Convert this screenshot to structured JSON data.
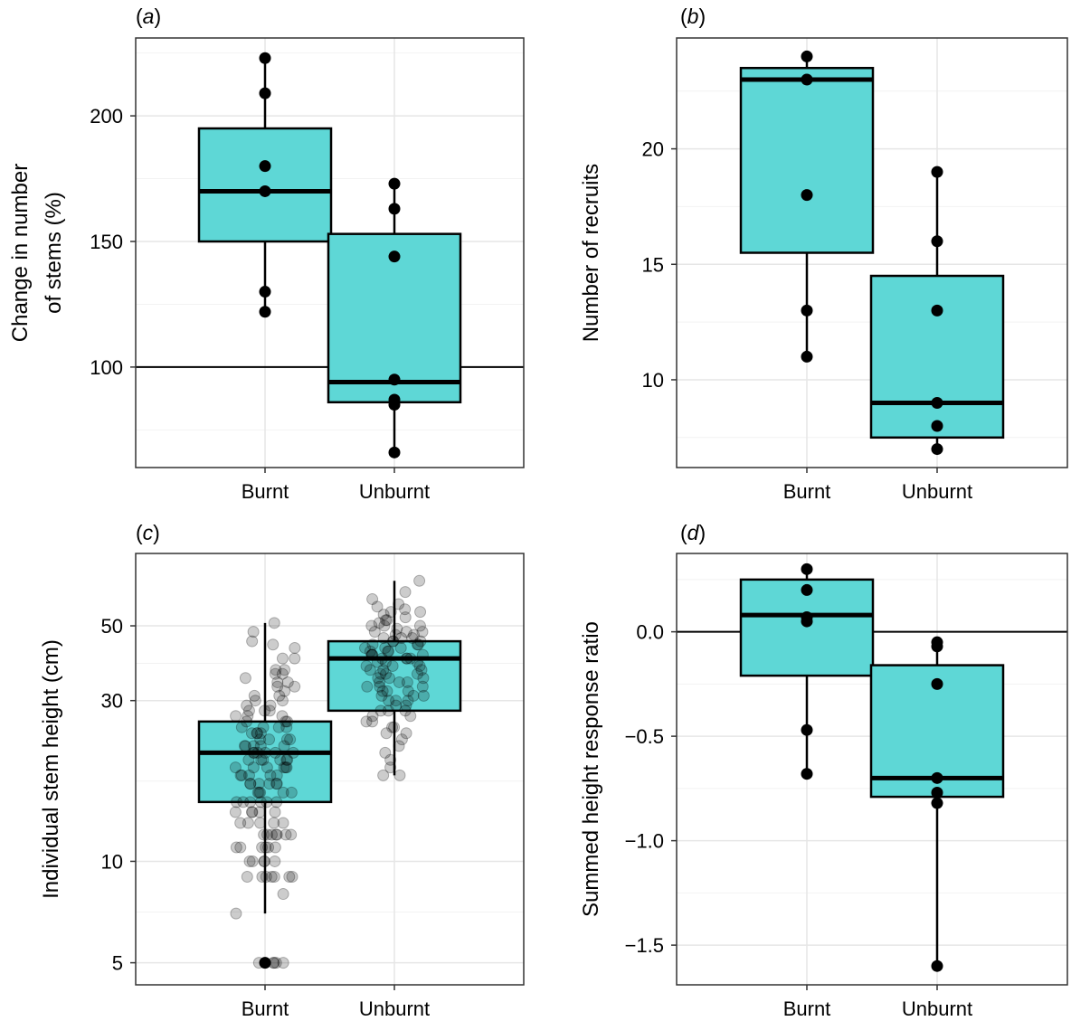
{
  "colors": {
    "box_fill": "#5ED7D6",
    "box_stroke": "#000000",
    "point": "#000000",
    "grid_major": "#E6E6E6",
    "grid_minor": "#F2F2F2",
    "panel_border": "#333333"
  },
  "chart_data": [
    {
      "id": "a",
      "panel_label": "a",
      "type": "box",
      "categories": [
        "Burnt",
        "Unburnt"
      ],
      "ylabel_lines": [
        "Change in number",
        "of stems (%)"
      ],
      "y_scale": "linear",
      "ylim": [
        60,
        231
      ],
      "yticks": [
        100,
        150,
        200
      ],
      "ytick_labels": [
        "100",
        "150",
        "200"
      ],
      "yminor": [
        75,
        125,
        175,
        225
      ],
      "reference_line": 100,
      "point_style": "solid",
      "grid": true,
      "boxes": [
        {
          "category": "Burnt",
          "whisker_low": 122,
          "q1": 150,
          "median": 170,
          "q3": 195,
          "whisker_high": 223
        },
        {
          "category": "Unburnt",
          "whisker_low": 66,
          "q1": 86,
          "median": 94,
          "q3": 153,
          "whisker_high": 173
        }
      ],
      "points": [
        {
          "category": "Burnt",
          "values": [
            223,
            209,
            180,
            170,
            130,
            122
          ]
        },
        {
          "category": "Unburnt",
          "values": [
            173,
            163,
            144,
            95,
            87,
            85,
            66
          ]
        }
      ]
    },
    {
      "id": "b",
      "panel_label": "b",
      "type": "box",
      "categories": [
        "Burnt",
        "Unburnt"
      ],
      "ylabel_lines": [
        "Number of recruits"
      ],
      "y_scale": "linear",
      "ylim": [
        6.2,
        24.8
      ],
      "yticks": [
        10,
        15,
        20
      ],
      "ytick_labels": [
        "10",
        "15",
        "20"
      ],
      "yminor": [
        7.5,
        12.5,
        17.5,
        22.5
      ],
      "reference_line": null,
      "point_style": "solid",
      "grid": true,
      "boxes": [
        {
          "category": "Burnt",
          "whisker_low": 11,
          "q1": 15.5,
          "median": 23,
          "q3": 23.5,
          "whisker_high": 24
        },
        {
          "category": "Unburnt",
          "whisker_low": 7,
          "q1": 7.5,
          "median": 9,
          "q3": 14.5,
          "whisker_high": 19
        }
      ],
      "points": [
        {
          "category": "Burnt",
          "values": [
            24,
            23,
            18,
            13,
            11
          ]
        },
        {
          "category": "Unburnt",
          "values": [
            19,
            16,
            13,
            9,
            8,
            7
          ]
        }
      ]
    },
    {
      "id": "c",
      "panel_label": "c",
      "type": "box",
      "categories": [
        "Burnt",
        "Unburnt"
      ],
      "ylabel_lines": [
        "Individual stem height (cm)"
      ],
      "y_scale": "log",
      "ylim": [
        4.3,
        82
      ],
      "yticks": [
        5,
        10,
        30,
        50
      ],
      "ytick_labels": [
        "5",
        "10",
        "30",
        "50"
      ],
      "yminor": [
        7.07,
        17.3,
        38.7
      ],
      "reference_line": null,
      "point_style": "jitter-translucent",
      "grid": true,
      "boxes": [
        {
          "category": "Burnt",
          "whisker_low": 7,
          "q1": 15,
          "median": 21,
          "q3": 26,
          "whisker_high": 51
        },
        {
          "category": "Unburnt",
          "whisker_low": 18,
          "q1": 28,
          "median": 40,
          "q3": 45,
          "whisker_high": 68
        }
      ],
      "points": [
        {
          "category": "Burnt",
          "values": [
            51,
            48,
            44,
            40,
            37,
            36,
            35,
            34,
            33,
            32,
            31,
            30,
            30,
            29,
            28,
            28,
            27,
            27,
            26,
            26,
            25,
            25,
            25,
            24,
            24,
            24,
            23,
            23,
            23,
            22,
            22,
            22,
            22,
            21,
            21,
            21,
            21,
            20,
            20,
            20,
            20,
            20,
            19,
            19,
            19,
            19,
            18,
            18,
            18,
            18,
            17,
            17,
            17,
            17,
            16,
            16,
            16,
            16,
            15,
            15,
            15,
            15,
            14,
            14,
            14,
            14,
            13,
            13,
            13,
            12,
            12,
            12,
            12,
            12,
            11,
            11,
            11,
            11,
            10,
            10,
            10,
            9,
            9,
            9,
            9,
            9,
            7,
            5,
            5,
            5,
            5,
            5,
            45,
            36,
            33,
            28,
            26,
            23,
            21,
            19,
            17,
            15,
            13,
            12,
            11,
            10,
            9,
            8,
            22,
            20,
            18,
            16,
            14,
            24,
            27,
            31,
            34,
            37,
            40,
            43,
            29,
            25,
            21,
            19,
            17,
            15,
            13,
            12,
            11,
            10,
            9
          ]
        },
        {
          "category": "Unburnt",
          "values": [
            68,
            63,
            60,
            58,
            57,
            56,
            55,
            54,
            53,
            52,
            52,
            51,
            50,
            50,
            49,
            48,
            48,
            47,
            47,
            46,
            46,
            45,
            45,
            44,
            44,
            43,
            43,
            43,
            42,
            42,
            41,
            41,
            41,
            40,
            40,
            40,
            39,
            39,
            38,
            38,
            37,
            37,
            36,
            36,
            35,
            35,
            34,
            34,
            33,
            33,
            32,
            32,
            31,
            31,
            30,
            30,
            29,
            29,
            28,
            28,
            27,
            27,
            26,
            26,
            25,
            25,
            24,
            24,
            23,
            22,
            21,
            20,
            19,
            18,
            18,
            55,
            50,
            46,
            42,
            39,
            36,
            33,
            30,
            28,
            45,
            41,
            38,
            35,
            32,
            48,
            44,
            40,
            37,
            34,
            31
          ]
        }
      ]
    },
    {
      "id": "d",
      "panel_label": "d",
      "type": "box",
      "categories": [
        "Burnt",
        "Unburnt"
      ],
      "ylabel_lines": [
        "Summed height response ratio"
      ],
      "y_scale": "linear",
      "ylim": [
        -1.69,
        0.375
      ],
      "yticks": [
        -1.5,
        -1.0,
        -0.5,
        0.0
      ],
      "ytick_labels": [
        "-1.5",
        "-1.0",
        "-0.5",
        "0.0"
      ],
      "yminor": [
        -1.25,
        -0.75,
        -0.25,
        0.25
      ],
      "reference_line": 0,
      "point_style": "solid",
      "grid": true,
      "boxes": [
        {
          "category": "Burnt",
          "whisker_low": -0.68,
          "q1": -0.21,
          "median": 0.08,
          "q3": 0.25,
          "whisker_high": 0.3
        },
        {
          "category": "Unburnt",
          "whisker_low": -1.6,
          "q1": -0.79,
          "median": -0.7,
          "q3": -0.16,
          "whisker_high": -0.05
        }
      ],
      "points": [
        {
          "category": "Burnt",
          "values": [
            0.3,
            0.2,
            0.07,
            0.05,
            -0.47,
            -0.68
          ]
        },
        {
          "category": "Unburnt",
          "values": [
            -0.05,
            -0.07,
            -0.25,
            -0.7,
            -0.77,
            -0.82,
            -1.6
          ]
        }
      ]
    }
  ]
}
